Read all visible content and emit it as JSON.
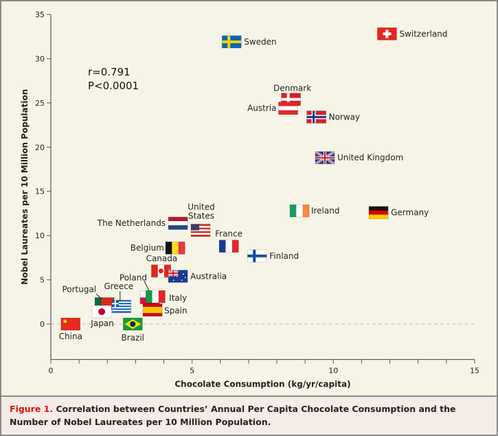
{
  "chart_data": {
    "type": "scatter",
    "xlabel": "Chocolate Consumption (kg/yr/capita)",
    "ylabel": "Nobel Laureates per 10 Million Population",
    "xlim": [
      0,
      15
    ],
    "ylim": [
      -4,
      35
    ],
    "xticks": [
      0,
      5,
      10,
      15
    ],
    "yticks": [
      0,
      5,
      10,
      15,
      20,
      25,
      30,
      35
    ],
    "grid": false,
    "annotation": [
      "r=0.791",
      "P<0.0001"
    ],
    "points": [
      {
        "country": "Switzerland",
        "x": 11.9,
        "y": 32.8
      },
      {
        "country": "Sweden",
        "x": 6.4,
        "y": 31.9
      },
      {
        "country": "Denmark",
        "x": 8.5,
        "y": 25.4
      },
      {
        "country": "Austria",
        "x": 8.4,
        "y": 24.4
      },
      {
        "country": "Norway",
        "x": 9.4,
        "y": 23.4
      },
      {
        "country": "United Kingdom",
        "x": 9.7,
        "y": 18.8
      },
      {
        "country": "Ireland",
        "x": 8.8,
        "y": 12.8
      },
      {
        "country": "Germany",
        "x": 11.6,
        "y": 12.6
      },
      {
        "country": "The Netherlands",
        "x": 4.5,
        "y": 11.4
      },
      {
        "country": "United States",
        "x": 5.3,
        "y": 10.6
      },
      {
        "country": "France",
        "x": 6.3,
        "y": 8.8
      },
      {
        "country": "Belgium",
        "x": 4.4,
        "y": 8.6
      },
      {
        "country": "Finland",
        "x": 7.3,
        "y": 7.7
      },
      {
        "country": "Canada",
        "x": 3.9,
        "y": 6.0
      },
      {
        "country": "Australia",
        "x": 4.5,
        "y": 5.4
      },
      {
        "country": "Poland",
        "x": 3.5,
        "y": 3.0
      },
      {
        "country": "Italy",
        "x": 3.7,
        "y": 3.1
      },
      {
        "country": "Spain",
        "x": 3.6,
        "y": 1.6
      },
      {
        "country": "Portugal",
        "x": 1.9,
        "y": 2.3
      },
      {
        "country": "Greece",
        "x": 2.5,
        "y": 2.0
      },
      {
        "country": "Japan",
        "x": 1.8,
        "y": 1.4
      },
      {
        "country": "China",
        "x": 0.7,
        "y": 0.0
      },
      {
        "country": "Brazil",
        "x": 2.9,
        "y": 0.0
      }
    ]
  },
  "caption": {
    "label": "Figure 1.",
    "text": "Correlation between Countries’ Annual Per Capita Chocolate Consumption and the Number of Nobel Laureates per 10 Million Population."
  },
  "colors": {
    "background": "#f6f4e6",
    "caption_background": "#f4ece5",
    "caption_label": "#dd1111"
  }
}
